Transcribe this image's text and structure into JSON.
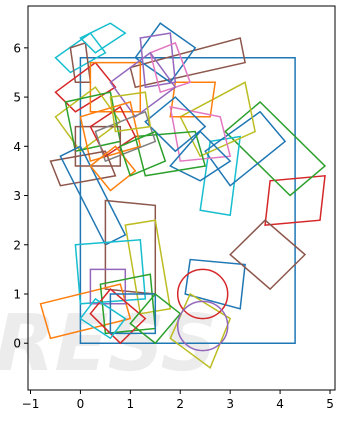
{
  "chart_data": {
    "type": "scatter",
    "title": "",
    "xlabel": "",
    "ylabel": "",
    "xlim": [
      -1.05,
      5.1
    ],
    "ylim": [
      -0.95,
      6.85
    ],
    "grid": false,
    "x_ticks": [
      -1,
      0,
      1,
      2,
      3,
      4,
      5
    ],
    "x_tick_labels": [
      "−1",
      "0",
      "1",
      "2",
      "3",
      "4",
      "5"
    ],
    "y_ticks": [
      0,
      1,
      2,
      3,
      4,
      5,
      6
    ],
    "y_tick_labels": [
      "0",
      "1",
      "2",
      "3",
      "4",
      "5",
      "6"
    ],
    "circles": [
      {
        "center": [
          2.45,
          1.0
        ],
        "radius": 0.5,
        "color": "#d62728"
      },
      {
        "center": [
          2.45,
          0.35
        ],
        "radius": 0.5,
        "color": "#9467bd"
      }
    ],
    "shapes": [
      {
        "color": "#1f77b4",
        "pts": [
          [
            0,
            0
          ],
          [
            4.3,
            0
          ],
          [
            4.3,
            5.8
          ],
          [
            0,
            5.8
          ]
        ]
      },
      {
        "color": "#1f77b4",
        "pts": [
          [
            2.1,
            1.0
          ],
          [
            3.2,
            0.7
          ],
          [
            3.3,
            1.6
          ],
          [
            2.2,
            1.7
          ]
        ]
      },
      {
        "color": "#d62728",
        "pts": [
          [
            3.7,
            2.4
          ],
          [
            4.8,
            2.5
          ],
          [
            4.9,
            3.4
          ],
          [
            3.8,
            3.3
          ]
        ]
      },
      {
        "color": "#8c564b",
        "pts": [
          [
            3.0,
            1.8
          ],
          [
            3.7,
            2.5
          ],
          [
            4.5,
            1.8
          ],
          [
            3.8,
            1.1
          ]
        ]
      },
      {
        "color": "#2ca02c",
        "pts": [
          [
            2.9,
            4.3
          ],
          [
            3.6,
            4.9
          ],
          [
            4.9,
            3.6
          ],
          [
            4.2,
            3.0
          ]
        ]
      },
      {
        "color": "#17becf",
        "pts": [
          [
            2.6,
            4.1
          ],
          [
            3.2,
            4.2
          ],
          [
            3.0,
            2.6
          ],
          [
            2.4,
            2.7
          ]
        ]
      },
      {
        "color": "#1f77b4",
        "pts": [
          [
            2.5,
            3.9
          ],
          [
            3.6,
            4.7
          ],
          [
            4.1,
            4.1
          ],
          [
            3.0,
            3.2
          ]
        ]
      },
      {
        "color": "#bcbd22",
        "pts": [
          [
            2.0,
            4.6
          ],
          [
            3.3,
            5.3
          ],
          [
            3.5,
            4.3
          ],
          [
            2.4,
            3.8
          ]
        ]
      },
      {
        "color": "#ff7f0e",
        "pts": [
          [
            1.9,
            5.3
          ],
          [
            2.7,
            5.3
          ],
          [
            2.6,
            4.6
          ],
          [
            1.8,
            4.6
          ]
        ]
      },
      {
        "color": "#8c564b",
        "pts": [
          [
            1.0,
            5.6
          ],
          [
            3.2,
            6.2
          ],
          [
            3.3,
            5.7
          ],
          [
            1.1,
            5.2
          ]
        ]
      },
      {
        "color": "#1f77b4",
        "pts": [
          [
            1.1,
            5.8
          ],
          [
            1.6,
            6.5
          ],
          [
            2.3,
            6.0
          ],
          [
            1.8,
            5.3
          ]
        ]
      },
      {
        "color": "#9467bd",
        "pts": [
          [
            1.2,
            6.2
          ],
          [
            1.8,
            6.3
          ],
          [
            1.9,
            5.3
          ],
          [
            1.3,
            5.2
          ]
        ]
      },
      {
        "color": "#e377c2",
        "pts": [
          [
            1.4,
            5.9
          ],
          [
            1.9,
            6.1
          ],
          [
            2.2,
            5.3
          ],
          [
            1.6,
            5.1
          ]
        ]
      },
      {
        "color": "#e377c2",
        "pts": [
          [
            1.8,
            4.8
          ],
          [
            2.8,
            4.6
          ],
          [
            3.0,
            3.8
          ],
          [
            2.0,
            3.7
          ]
        ]
      },
      {
        "color": "#1f77b4",
        "pts": [
          [
            1.8,
            3.6
          ],
          [
            2.4,
            4.3
          ],
          [
            3.0,
            3.7
          ],
          [
            2.4,
            3.3
          ]
        ]
      },
      {
        "color": "#2ca02c",
        "pts": [
          [
            1.1,
            4.2
          ],
          [
            2.3,
            4.3
          ],
          [
            2.5,
            3.6
          ],
          [
            1.3,
            3.4
          ]
        ]
      },
      {
        "color": "#1f77b4",
        "pts": [
          [
            1.3,
            4.5
          ],
          [
            1.9,
            3.9
          ],
          [
            2.5,
            4.4
          ],
          [
            1.9,
            5.0
          ]
        ]
      },
      {
        "color": "#17becf",
        "pts": [
          [
            -0.5,
            5.8
          ],
          [
            0.2,
            6.3
          ],
          [
            0.5,
            5.9
          ],
          [
            -0.2,
            5.5
          ]
        ]
      },
      {
        "color": "#8c564b",
        "pts": [
          [
            -0.2,
            6.0
          ],
          [
            0.1,
            6.1
          ],
          [
            0.2,
            5.3
          ],
          [
            -0.1,
            5.3
          ]
        ]
      },
      {
        "color": "#d62728",
        "pts": [
          [
            -0.5,
            5.1
          ],
          [
            0.3,
            5.7
          ],
          [
            0.7,
            5.2
          ],
          [
            -0.1,
            4.7
          ]
        ]
      },
      {
        "color": "#17becf",
        "pts": [
          [
            0.3,
            5.9
          ],
          [
            0.9,
            6.3
          ],
          [
            0.6,
            6.5
          ],
          [
            0.0,
            6.2
          ]
        ]
      },
      {
        "color": "#ff7f0e",
        "pts": [
          [
            0.2,
            5.7
          ],
          [
            1.2,
            5.7
          ],
          [
            1.2,
            4.7
          ],
          [
            0.2,
            4.7
          ]
        ]
      },
      {
        "color": "#9467bd",
        "pts": [
          [
            0.6,
            5.3
          ],
          [
            1.4,
            5.9
          ],
          [
            1.9,
            5.2
          ],
          [
            1.1,
            4.6
          ]
        ]
      },
      {
        "color": "#bcbd22",
        "pts": [
          [
            -0.5,
            4.6
          ],
          [
            0.3,
            5.2
          ],
          [
            0.8,
            4.5
          ],
          [
            0.0,
            3.9
          ]
        ]
      },
      {
        "color": "#2ca02c",
        "pts": [
          [
            -0.3,
            4.9
          ],
          [
            0.6,
            5.1
          ],
          [
            0.8,
            4.1
          ],
          [
            -0.1,
            3.9
          ]
        ]
      },
      {
        "color": "#8c564b",
        "pts": [
          [
            -0.1,
            4.4
          ],
          [
            0.8,
            4.4
          ],
          [
            0.8,
            3.6
          ],
          [
            -0.1,
            3.6
          ]
        ]
      },
      {
        "color": "#ff7f0e",
        "pts": [
          [
            0.0,
            4.6
          ],
          [
            1.0,
            4.9
          ],
          [
            1.2,
            4.0
          ],
          [
            0.2,
            3.7
          ]
        ]
      },
      {
        "color": "#d62728",
        "pts": [
          [
            0.2,
            4.4
          ],
          [
            0.8,
            4.8
          ],
          [
            1.1,
            4.2
          ],
          [
            0.5,
            3.8
          ]
        ]
      },
      {
        "color": "#7f7f7f",
        "pts": [
          [
            0.3,
            4.3
          ],
          [
            1.3,
            4.7
          ],
          [
            1.5,
            4.1
          ],
          [
            0.5,
            3.7
          ]
        ]
      },
      {
        "color": "#bcbd22",
        "pts": [
          [
            0.6,
            5.0
          ],
          [
            1.3,
            5.1
          ],
          [
            1.4,
            4.4
          ],
          [
            0.7,
            4.3
          ]
        ]
      },
      {
        "color": "#8c564b",
        "pts": [
          [
            -0.6,
            3.7
          ],
          [
            0.5,
            3.9
          ],
          [
            0.7,
            3.4
          ],
          [
            -0.4,
            3.2
          ]
        ]
      },
      {
        "color": "#1f77b4",
        "pts": [
          [
            -0.4,
            3.8
          ],
          [
            0.5,
            2.0
          ],
          [
            0.9,
            2.2
          ],
          [
            0.0,
            4.0
          ]
        ]
      },
      {
        "color": "#ff7f0e",
        "pts": [
          [
            0.2,
            3.6
          ],
          [
            0.7,
            4.0
          ],
          [
            1.1,
            3.5
          ],
          [
            0.6,
            3.1
          ]
        ]
      },
      {
        "color": "#2ca02c",
        "pts": [
          [
            0.8,
            4.0
          ],
          [
            1.5,
            4.3
          ],
          [
            1.7,
            3.7
          ],
          [
            1.0,
            3.4
          ]
        ]
      },
      {
        "color": "#8c564b",
        "pts": [
          [
            0.5,
            2.9
          ],
          [
            1.5,
            2.8
          ],
          [
            1.5,
            1.0
          ],
          [
            0.5,
            1.1
          ]
        ]
      },
      {
        "color": "#bcbd22",
        "pts": [
          [
            0.9,
            2.4
          ],
          [
            1.5,
            2.5
          ],
          [
            1.8,
            0.7
          ],
          [
            1.2,
            0.6
          ]
        ]
      },
      {
        "color": "#17becf",
        "pts": [
          [
            -0.1,
            2.0
          ],
          [
            1.2,
            2.1
          ],
          [
            1.3,
            0.9
          ],
          [
            0.0,
            0.8
          ]
        ]
      },
      {
        "color": "#ff7f0e",
        "pts": [
          [
            -0.8,
            0.8
          ],
          [
            0.8,
            1.2
          ],
          [
            1.0,
            0.5
          ],
          [
            -0.6,
            0.1
          ]
        ]
      },
      {
        "color": "#9467bd",
        "pts": [
          [
            0.2,
            1.5
          ],
          [
            0.9,
            1.5
          ],
          [
            0.9,
            0.8
          ],
          [
            0.2,
            0.8
          ]
        ]
      },
      {
        "color": "#2ca02c",
        "pts": [
          [
            0.4,
            1.2
          ],
          [
            1.4,
            1.4
          ],
          [
            1.5,
            0.3
          ],
          [
            0.5,
            0.2
          ]
        ]
      },
      {
        "color": "#d62728",
        "pts": [
          [
            0.2,
            0.6
          ],
          [
            0.6,
            1.1
          ],
          [
            1.3,
            0.5
          ],
          [
            0.8,
            0.0
          ]
        ]
      },
      {
        "color": "#1f77b4",
        "pts": [
          [
            0.6,
            1.0
          ],
          [
            1.5,
            1.0
          ],
          [
            1.5,
            0.2
          ],
          [
            0.6,
            0.2
          ]
        ]
      },
      {
        "color": "#bcbd22",
        "pts": [
          [
            1.8,
            0.1
          ],
          [
            2.6,
            -0.5
          ],
          [
            3.0,
            0.5
          ],
          [
            2.2,
            1.0
          ]
        ]
      },
      {
        "color": "#2ca02c",
        "pts": [
          [
            1.0,
            0.4
          ],
          [
            1.5,
            0.0
          ],
          [
            2.0,
            0.6
          ],
          [
            1.5,
            1.0
          ]
        ]
      },
      {
        "color": "#17becf",
        "pts": [
          [
            0.0,
            0.5
          ],
          [
            0.3,
            0.9
          ],
          [
            0.9,
            0.5
          ],
          [
            0.6,
            0.1
          ]
        ]
      }
    ]
  },
  "watermark": {
    "text": "PRESS",
    "color": "#dddddd"
  }
}
